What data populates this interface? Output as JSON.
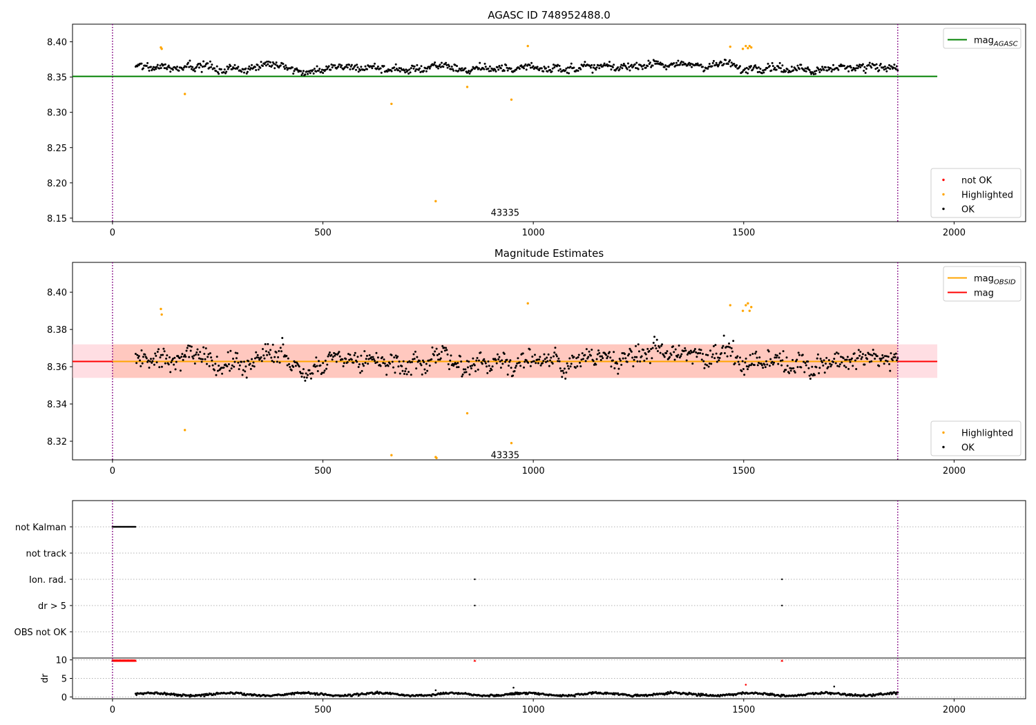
{
  "chart_data": [
    {
      "type": "scatter",
      "title": "AGASC ID 748952488.0",
      "xlim": [
        -95,
        2170
      ],
      "ylim": [
        8.145,
        8.425
      ],
      "xticks": [
        0,
        500,
        1000,
        1500,
        2000
      ],
      "xtick_labels": [
        "0",
        "500",
        "1000",
        "1500",
        "2000"
      ],
      "yticks": [
        8.15,
        8.2,
        8.25,
        8.3,
        8.35,
        8.4
      ],
      "ytick_labels": [
        "8.15",
        "8.20",
        "8.25",
        "8.30",
        "8.35",
        "8.40"
      ],
      "obsid_boundaries": [
        0,
        1866
      ],
      "obsid_annotation": {
        "text": "43335",
        "x": 933,
        "y": 8.157
      },
      "reference_lines": [
        {
          "label": "mag_AGASC",
          "label_main": "mag",
          "label_sub": "AGASC",
          "y": 8.351,
          "x_range": [
            -95,
            1960
          ],
          "color": "#008000"
        }
      ],
      "ok_series": {
        "name": "OK",
        "color": "#000000",
        "x_range": [
          55,
          1866
        ],
        "mean": 8.363,
        "spread": 0.008
      },
      "highlighted_points": [
        {
          "x": 115,
          "y": 8.392
        },
        {
          "x": 117,
          "y": 8.39
        },
        {
          "x": 172,
          "y": 8.326
        },
        {
          "x": 663,
          "y": 8.312
        },
        {
          "x": 768,
          "y": 8.174
        },
        {
          "x": 843,
          "y": 8.336
        },
        {
          "x": 948,
          "y": 8.318
        },
        {
          "x": 987,
          "y": 8.394
        },
        {
          "x": 1468,
          "y": 8.393
        },
        {
          "x": 1498,
          "y": 8.39
        },
        {
          "x": 1505,
          "y": 8.394
        },
        {
          "x": 1510,
          "y": 8.391
        },
        {
          "x": 1514,
          "y": 8.394
        },
        {
          "x": 1518,
          "y": 8.392
        }
      ],
      "legends": [
        {
          "position": "top-right",
          "entries": [
            {
              "label": "mag_AGASC",
              "main": "mag",
              "sub": "AGASC",
              "kind": "line",
              "color": "#008000"
            }
          ]
        },
        {
          "position": "bottom-right",
          "entries": [
            {
              "label": "not OK",
              "kind": "marker",
              "color": "#ff0000"
            },
            {
              "label": "Highlighted",
              "kind": "marker",
              "color": "#ffa500"
            },
            {
              "label": "OK",
              "kind": "marker",
              "color": "#000000"
            }
          ]
        }
      ]
    },
    {
      "type": "scatter",
      "title": "Magnitude Estimates",
      "xlim": [
        -95,
        2170
      ],
      "ylim": [
        8.31,
        8.416
      ],
      "xticks": [
        0,
        500,
        1000,
        1500,
        2000
      ],
      "xtick_labels": [
        "0",
        "500",
        "1000",
        "1500",
        "2000"
      ],
      "yticks": [
        8.32,
        8.34,
        8.36,
        8.38,
        8.4
      ],
      "ytick_labels": [
        "8.32",
        "8.34",
        "8.36",
        "8.38",
        "8.40"
      ],
      "obsid_boundaries": [
        0,
        1866
      ],
      "obsid_annotation": {
        "text": "43335",
        "x": 933,
        "y": 8.3125
      },
      "bands": [
        {
          "y_range": [
            8.354,
            8.372
          ],
          "x_range": [
            -95,
            1960
          ],
          "color": "#ffb6c1",
          "opacity": 0.45
        },
        {
          "y_range": [
            8.354,
            8.372
          ],
          "x_range": [
            0,
            1866
          ],
          "color": "#ffa07a",
          "opacity": 0.35
        }
      ],
      "reference_lines": [
        {
          "label": "mag",
          "y": 8.3628,
          "x_range": [
            -95,
            1960
          ],
          "color": "#ff0000"
        },
        {
          "label": "mag_OBSID",
          "label_main": "mag",
          "label_sub": "OBSID",
          "y": 8.3628,
          "x_range": [
            0,
            1866
          ],
          "color": "#ffa500"
        }
      ],
      "ok_series": {
        "name": "OK",
        "color": "#000000",
        "x_range": [
          55,
          1866
        ],
        "mean": 8.363,
        "spread": 0.008
      },
      "highlighted_points": [
        {
          "x": 115,
          "y": 8.391
        },
        {
          "x": 117,
          "y": 8.388
        },
        {
          "x": 172,
          "y": 8.326
        },
        {
          "x": 663,
          "y": 8.3125
        },
        {
          "x": 768,
          "y": 8.3115
        },
        {
          "x": 770,
          "y": 8.311
        },
        {
          "x": 843,
          "y": 8.335
        },
        {
          "x": 948,
          "y": 8.319
        },
        {
          "x": 987,
          "y": 8.394
        },
        {
          "x": 1468,
          "y": 8.393
        },
        {
          "x": 1498,
          "y": 8.39
        },
        {
          "x": 1505,
          "y": 8.393
        },
        {
          "x": 1510,
          "y": 8.394
        },
        {
          "x": 1514,
          "y": 8.39
        },
        {
          "x": 1518,
          "y": 8.392
        }
      ],
      "legends": [
        {
          "position": "top-right",
          "entries": [
            {
              "label": "mag_OBSID",
              "main": "mag",
              "sub": "OBSID",
              "kind": "line",
              "color": "#ffa500"
            },
            {
              "label": "mag",
              "kind": "line",
              "color": "#ff0000"
            }
          ]
        },
        {
          "position": "bottom-right",
          "entries": [
            {
              "label": "Highlighted",
              "kind": "marker",
              "color": "#ffa500"
            },
            {
              "label": "OK",
              "kind": "marker",
              "color": "#000000"
            }
          ]
        }
      ]
    },
    {
      "type": "scatter",
      "title": "",
      "xlim": [
        -95,
        2170
      ],
      "categories": [
        "not Kalman",
        "not track",
        "Ion. rad.",
        "dr > 5",
        "OBS not OK"
      ],
      "flags": [
        {
          "category": "not Kalman",
          "x_range": [
            0,
            55
          ],
          "color": "#000000"
        },
        {
          "category": "Ion. rad.",
          "x": [
            861,
            1591
          ],
          "color": "#000000"
        },
        {
          "category": "dr > 5",
          "x": [
            861,
            1591
          ],
          "color": "#000000"
        }
      ],
      "obsid_boundaries": [
        0,
        1866
      ]
    },
    {
      "type": "scatter",
      "title": "",
      "ylabel": "dr",
      "xlim": [
        -95,
        2170
      ],
      "ylim": [
        -0.5,
        10.5
      ],
      "xticks": [
        0,
        500,
        1000,
        1500,
        2000
      ],
      "xtick_labels": [
        "0",
        "500",
        "1000",
        "1500",
        "2000"
      ],
      "yticks": [
        0,
        5,
        10
      ],
      "ytick_labels": [
        "0",
        "5",
        "10"
      ],
      "obsid_boundaries": [
        0,
        1866
      ],
      "dr_series": {
        "color": "#000000",
        "x_range": [
          55,
          1866
        ],
        "mean": 0.7
      },
      "capped_points": {
        "y": 9.8,
        "x_range": [
          0,
          55
        ],
        "extra_x": [
          861,
          1591
        ],
        "color": "#ff0000"
      },
      "other_points": [
        {
          "x": 768,
          "y": 1.8,
          "color": "#000000"
        },
        {
          "x": 953,
          "y": 2.5,
          "color": "#000000"
        },
        {
          "x": 1505,
          "y": 3.3,
          "color": "#ff0000"
        },
        {
          "x": 1715,
          "y": 2.8,
          "color": "#000000"
        }
      ]
    }
  ]
}
